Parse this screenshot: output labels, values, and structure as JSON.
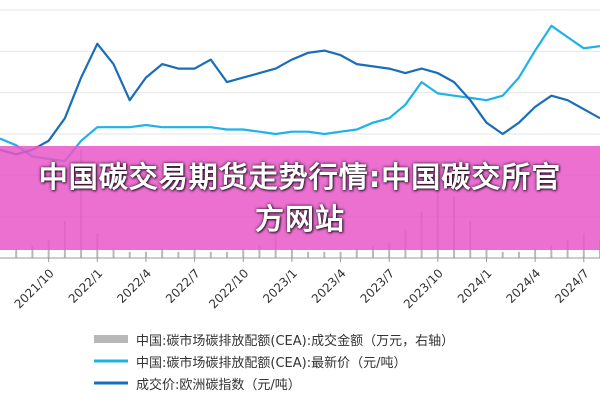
{
  "banner": {
    "title": "中国碳交易期货走势行情:中国碳交所官方网站"
  },
  "colors": {
    "volume": "#b8b8b8",
    "cea_price": "#1fb2e8",
    "eu_price": "#1a6db8",
    "banner": "#e858c8"
  },
  "legend": {
    "items": [
      {
        "key": "volume",
        "label": "中国:碳市场碳排放配额(CEA):成交金额（万元，右轴）"
      },
      {
        "key": "cea_price",
        "label": "中国:碳市场碳排放配额(CEA):最新价（元/吨）"
      },
      {
        "key": "eu_price",
        "label": "成交价:欧洲碳指数（元/吨）"
      }
    ]
  },
  "chart_data": {
    "type": "line",
    "title": "",
    "xlabel": "",
    "ylabel": "",
    "x_ticks": [
      "2021/10",
      "2022/1",
      "2022/4",
      "2022/7",
      "2022/10",
      "2023/1",
      "2023/4",
      "2023/7",
      "2023/10",
      "2024/1",
      "2024/4",
      "2024/7"
    ],
    "x_range": [
      "2021/07",
      "2024/08"
    ],
    "y_range": [
      0,
      110
    ],
    "grid": true,
    "series": [
      {
        "name": "中国:碳市场碳排放配额(CEA):成交金额（万元，右轴）",
        "kind": "bar",
        "axis": "right",
        "x": [
          "2021/08",
          "2021/09",
          "2021/10",
          "2021/11",
          "2021/12",
          "2022/01",
          "2022/02",
          "2022/03",
          "2022/04",
          "2022/05",
          "2022/06",
          "2022/07",
          "2022/08",
          "2022/09",
          "2022/10",
          "2022/11",
          "2022/12",
          "2023/01",
          "2023/02",
          "2023/03",
          "2023/04",
          "2023/05",
          "2023/06",
          "2023/07",
          "2023/08",
          "2023/09",
          "2023/10",
          "2023/11",
          "2023/12",
          "2024/01",
          "2024/02",
          "2024/03",
          "2024/04",
          "2024/05",
          "2024/06",
          "2024/07",
          "2024/08"
        ],
        "values": [
          3,
          4,
          6,
          12,
          35,
          8,
          3,
          2,
          2,
          3,
          2,
          3,
          2,
          2,
          3,
          4,
          9,
          3,
          2,
          2,
          2,
          3,
          4,
          5,
          9,
          15,
          30,
          20,
          12,
          3,
          2,
          2,
          3,
          4,
          6,
          8,
          6
        ]
      },
      {
        "name": "中国:碳市场碳排放配额(CEA):最新价（元/吨）",
        "kind": "line",
        "axis": "left",
        "x": [
          "2021/07",
          "2021/08",
          "2021/09",
          "2021/10",
          "2021/11",
          "2021/12",
          "2022/01",
          "2022/02",
          "2022/03",
          "2022/04",
          "2022/05",
          "2022/06",
          "2022/07",
          "2022/08",
          "2022/09",
          "2022/10",
          "2022/11",
          "2022/12",
          "2023/01",
          "2023/02",
          "2023/03",
          "2023/04",
          "2023/05",
          "2023/06",
          "2023/07",
          "2023/08",
          "2023/09",
          "2023/10",
          "2023/11",
          "2023/12",
          "2024/01",
          "2024/02",
          "2024/03",
          "2024/04",
          "2024/05",
          "2024/06",
          "2024/07",
          "2024/08"
        ],
        "values": [
          53,
          50,
          45,
          44,
          43,
          52,
          58,
          58,
          58,
          59,
          58,
          58,
          58,
          58,
          57,
          57,
          56,
          55,
          56,
          56,
          55,
          56,
          57,
          60,
          62,
          68,
          78,
          73,
          72,
          71,
          70,
          72,
          80,
          92,
          103,
          98,
          93,
          94
        ]
      },
      {
        "name": "成交价:欧洲碳指数（元/吨）",
        "kind": "line",
        "axis": "left",
        "x": [
          "2021/07",
          "2021/08",
          "2021/09",
          "2021/10",
          "2021/11",
          "2021/12",
          "2022/01",
          "2022/02",
          "2022/03",
          "2022/04",
          "2022/05",
          "2022/06",
          "2022/07",
          "2022/08",
          "2022/09",
          "2022/10",
          "2022/11",
          "2022/12",
          "2023/01",
          "2023/02",
          "2023/03",
          "2023/04",
          "2023/05",
          "2023/06",
          "2023/07",
          "2023/08",
          "2023/09",
          "2023/10",
          "2023/11",
          "2023/12",
          "2024/01",
          "2024/02",
          "2024/03",
          "2024/04",
          "2024/05",
          "2024/06",
          "2024/07",
          "2024/08"
        ],
        "values": [
          48,
          46,
          48,
          52,
          62,
          80,
          95,
          86,
          70,
          80,
          86,
          84,
          84,
          88,
          78,
          80,
          82,
          84,
          88,
          91,
          92,
          90,
          86,
          85,
          84,
          82,
          84,
          82,
          78,
          70,
          60,
          55,
          60,
          67,
          72,
          70,
          66,
          62
        ]
      }
    ]
  }
}
